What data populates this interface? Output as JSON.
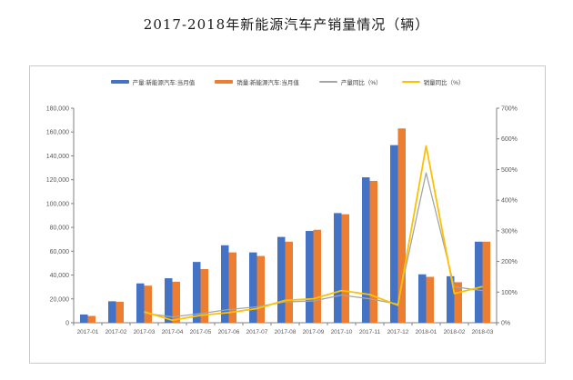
{
  "page": {
    "title": "2017-2018年新能源汽车产销量情况（辆）"
  },
  "chart_data": {
    "type": "bar",
    "subtype": "bar-line-combo",
    "title": "2017-2018年新能源汽车产销量情况（辆）",
    "grid": false,
    "legend_position": "top",
    "categories": [
      "2017-01",
      "2017-02",
      "2017-03",
      "2017-04",
      "2017-05",
      "2017-06",
      "2017-07",
      "2017-08",
      "2017-09",
      "2017-10",
      "2017-11",
      "2017-12",
      "2018-01",
      "2018-02",
      "2018-03"
    ],
    "series": [
      {
        "key": "production",
        "name": "产量:新能源汽车:当月值",
        "type": "bar",
        "axis": "left",
        "color": "#4472C4",
        "values": [
          6900,
          18000,
          33000,
          37300,
          51000,
          65000,
          59000,
          72000,
          77000,
          92000,
          122000,
          149000,
          40600,
          39000,
          68000
        ]
      },
      {
        "key": "sales",
        "name": "销量:新能源汽车:当月值",
        "type": "bar",
        "axis": "left",
        "color": "#ED7D31",
        "values": [
          5700,
          17600,
          31100,
          34400,
          45000,
          59000,
          56000,
          68000,
          78000,
          91000,
          119000,
          163000,
          38500,
          34000,
          68000
        ]
      },
      {
        "key": "production_yoy",
        "name": "产量同比（%）",
        "type": "line",
        "axis": "right",
        "color": "#A5A5A5",
        "stroke_width": 1.3,
        "values": [
          null,
          null,
          31,
          19,
          30,
          43,
          52,
          68,
          71,
          90,
          78,
          61,
          489,
          117,
          105
        ]
      },
      {
        "key": "sales_yoy",
        "name": "销量同比（%）",
        "type": "line",
        "axis": "right",
        "color": "#FFC000",
        "stroke_width": 1.8,
        "values": [
          null,
          null,
          36,
          8,
          24,
          33,
          46,
          73,
          78,
          105,
          92,
          57,
          577,
          95,
          118
        ]
      }
    ],
    "left_axis": {
      "min": 0,
      "max": 180000,
      "step": 20000,
      "tick_labels": [
        "0",
        "20,000",
        "40,000",
        "60,000",
        "80,000",
        "100,000",
        "120,000",
        "140,000",
        "160,000",
        "180,000"
      ]
    },
    "right_axis": {
      "min": 0,
      "max": 700,
      "step": 100,
      "tick_labels": [
        "0%",
        "100%",
        "200%",
        "300%",
        "400%",
        "500%",
        "600%",
        "700%"
      ]
    },
    "colors": {
      "axis_line": "#808080",
      "tick_text": "#595959",
      "frame_border": "#c9c9c9"
    }
  }
}
